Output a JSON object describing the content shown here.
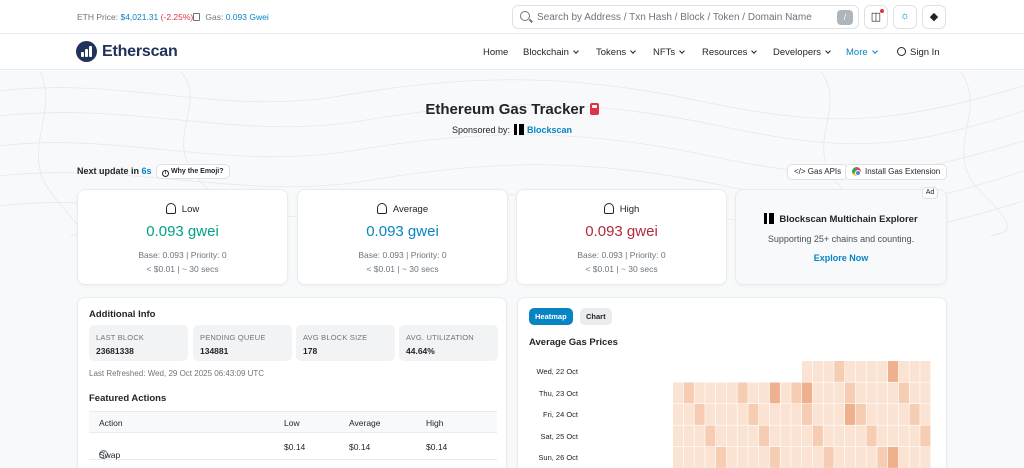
{
  "topbar": {
    "eth_price_label": "ETH Price:",
    "eth_price_value": "$4,021.31",
    "eth_price_change": "(-2.25%)",
    "gas_label": "Gas:",
    "gas_value": "0.093 Gwei",
    "search_placeholder": "Search by Address / Txn Hash / Block / Token / Domain Name",
    "search_shortcut": "/",
    "icons": [
      "wallet-icon",
      "theme-sun-icon",
      "ethereum-icon"
    ]
  },
  "nav": {
    "brand": "Etherscan",
    "items": [
      "Home",
      "Blockchain",
      "Tokens",
      "NFTs",
      "Resources",
      "Developers",
      "More"
    ],
    "sign_in": "Sign In"
  },
  "page": {
    "title": "Ethereum Gas Tracker",
    "sponsored_label": "Sponsored by:",
    "sponsor_name": "Blockscan",
    "next_update_label": "Next update in",
    "next_update_value": "6s",
    "why_emoji": "Why the Emoji?",
    "gas_apis": "Gas APIs",
    "install_extension": "Install Gas Extension"
  },
  "gas_cards": [
    {
      "label": "Low",
      "value": "0.093 gwei",
      "base": "Base: 0.093 | Priority: 0",
      "cost": "< $0.01 | ~ 30 secs",
      "color": "#00a186"
    },
    {
      "label": "Average",
      "value": "0.093 gwei",
      "base": "Base: 0.093 | Priority: 0",
      "cost": "< $0.01 | ~ 30 secs",
      "color": "#0784c3"
    },
    {
      "label": "High",
      "value": "0.093 gwei",
      "base": "Base: 0.093 | Priority: 0",
      "cost": "< $0.01 | ~ 30 secs",
      "color": "#b02a37"
    }
  ],
  "ad": {
    "tag": "Ad",
    "title": "Blockscan Multichain Explorer",
    "description": "Supporting 25+ chains and counting.",
    "cta": "Explore Now"
  },
  "additional_info": {
    "heading": "Additional Info",
    "stats": [
      {
        "label": "LAST BLOCK",
        "value": "23681338"
      },
      {
        "label": "PENDING QUEUE",
        "value": "134881"
      },
      {
        "label": "AVG BLOCK SIZE",
        "value": "178"
      },
      {
        "label": "AVG. UTILIZATION",
        "value": "44.64%"
      }
    ],
    "last_refreshed": "Last Refreshed: Wed, 29 Oct 2025 06:43:09 UTC",
    "featured_heading": "Featured Actions",
    "columns": [
      "Action",
      "Low",
      "Average",
      "High"
    ],
    "rows": [
      {
        "action": "Swap",
        "low": "$0.14",
        "average": "$0.14",
        "high": "$0.14"
      }
    ]
  },
  "heatmap": {
    "tabs": [
      "Heatmap",
      "Chart"
    ],
    "active_tab": "Heatmap",
    "heading": "Average Gas Prices",
    "days": [
      "Wed, 22 Oct",
      "Thu, 23 Oct",
      "Fri, 24 Oct",
      "Sat, 25 Oct",
      "Sun, 26 Oct"
    ],
    "colors": {
      "empty": "#ffffff",
      "low": "#fbe3d4",
      "mid": "#f6cdb2",
      "high": "#efb08d"
    }
  }
}
